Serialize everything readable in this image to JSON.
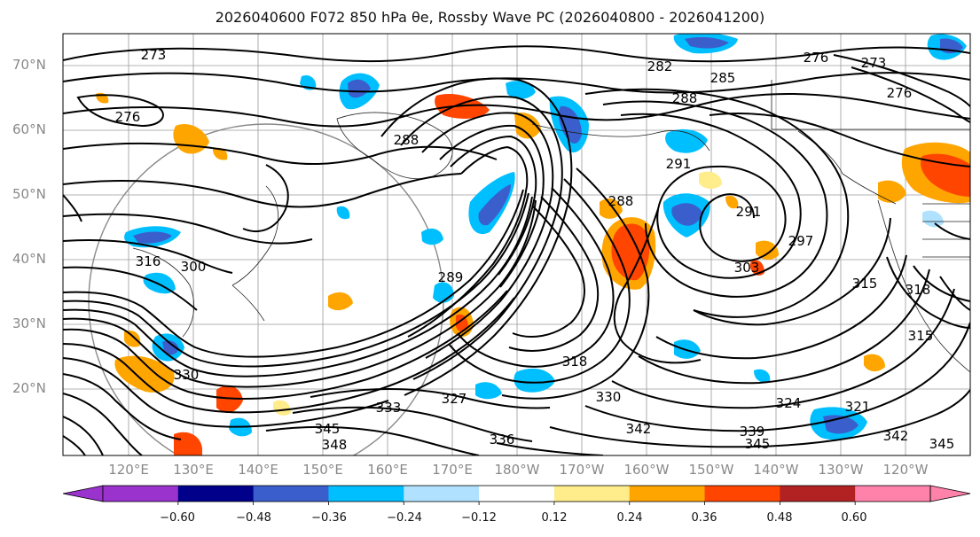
{
  "map": {
    "title": "2026040600 F072 850 hPa θe, Rossby Wave PC (2026040800 - 2026041200)",
    "lat_labels": [
      "70°N",
      "60°N",
      "50°N",
      "40°N",
      "30°N",
      "20°N"
    ],
    "lon_labels": [
      "120°E",
      "130°E",
      "140°E",
      "150°E",
      "160°E",
      "170°E",
      "180°W",
      "170°W",
      "160°W",
      "150°W",
      "140°W",
      "130°W",
      "120°W"
    ],
    "contour_labels": [
      "276",
      "273",
      "282",
      "285",
      "288",
      "276",
      "273",
      "276",
      "288",
      "288",
      "291",
      "291",
      "297",
      "303",
      "315",
      "318",
      "300",
      "316",
      "289",
      "318",
      "315",
      "327",
      "330",
      "324",
      "321",
      "333",
      "345",
      "348",
      "336",
      "342",
      "339",
      "345",
      "342",
      "345",
      "330"
    ]
  },
  "colorbar": {
    "colors": [
      "#9a32cd",
      "#00008b",
      "#3a5fcd",
      "#00bfff",
      "#b0e2ff",
      "#ffffff",
      "#ffec8b",
      "#ffa500",
      "#ff4500",
      "#b22222",
      "#ff82ab"
    ],
    "ticks": [
      "−0.60",
      "−0.48",
      "−0.36",
      "−0.24",
      "−0.12",
      "0.12",
      "0.24",
      "0.36",
      "0.48",
      "0.60"
    ]
  },
  "colors": {
    "negative_strong": "#3a5fcd",
    "negative": "#00bfff",
    "negative_weak": "#b0e2ff",
    "positive_weak": "#ffec8b",
    "positive": "#ffa500",
    "positive_strong": "#ff4500"
  }
}
